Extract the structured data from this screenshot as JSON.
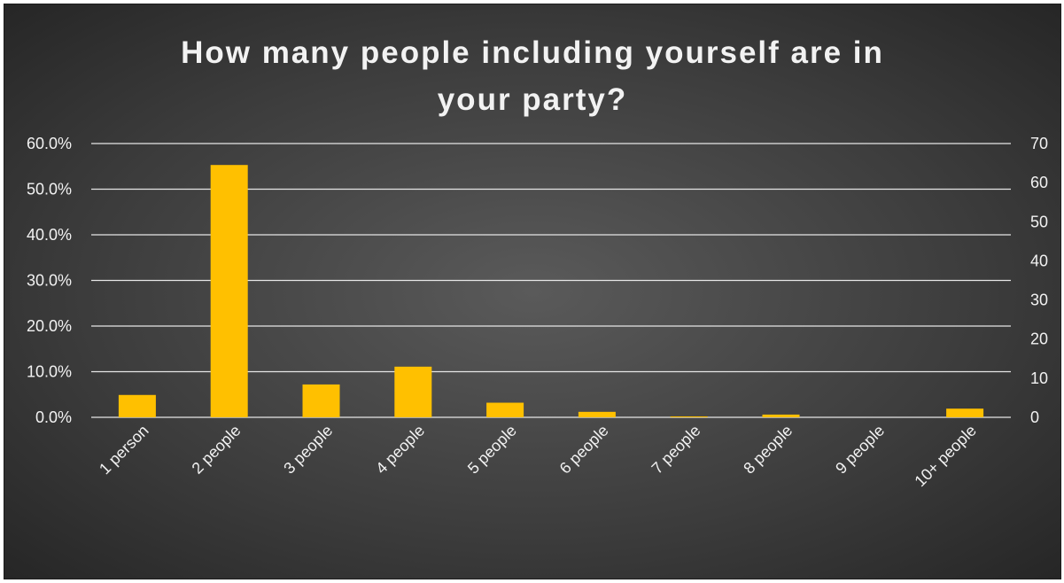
{
  "chart_data": {
    "type": "bar",
    "title_line1": "How many people including yourself are in",
    "title_line2": "your party?",
    "categories": [
      "1 person",
      "2 people",
      "3 people",
      "4 people",
      "5 people",
      "6 people",
      "7 people",
      "8 people",
      "9 people",
      "10+ people"
    ],
    "values": [
      4.9,
      55.3,
      7.2,
      11.1,
      3.2,
      1.2,
      0.2,
      0.6,
      0.0,
      1.9
    ],
    "ylim": [
      0,
      60
    ],
    "y_ticks": [
      "0.0%",
      "10.0%",
      "20.0%",
      "30.0%",
      "40.0%",
      "50.0%",
      "60.0%"
    ],
    "y2lim": [
      0,
      70
    ],
    "y2_ticks": [
      "0",
      "10",
      "20",
      "30",
      "40",
      "50",
      "60",
      "70"
    ],
    "grid": true,
    "legend": "none",
    "bar_color": "#ffc000"
  }
}
